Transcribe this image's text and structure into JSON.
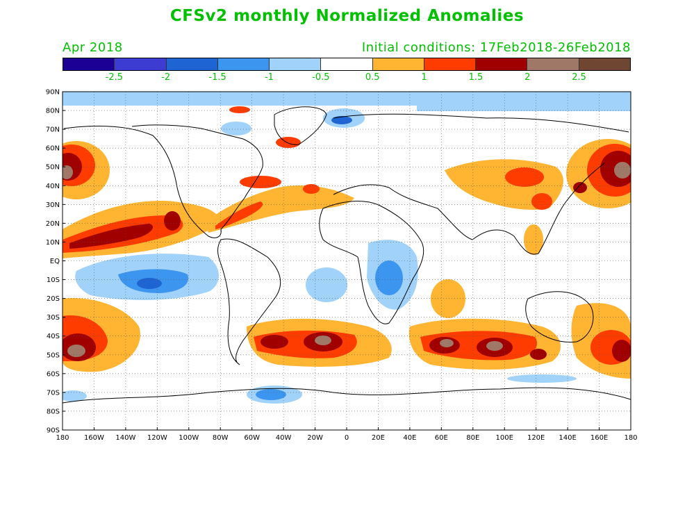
{
  "header": {
    "title": "CFSv2 monthly Normalized Anomalies",
    "left_subtitle": "Apr 2018",
    "right_subtitle": "Initial conditions: 17Feb2018-26Feb2018",
    "text_color": "#00c000"
  },
  "colorbar": {
    "colors": [
      "#1c0096",
      "#3c3cd2",
      "#1e64d2",
      "#3c96f0",
      "#a0d2fa",
      "#ffffff",
      "#ffb432",
      "#ff3c00",
      "#a00000",
      "#a07868",
      "#6e4632"
    ],
    "labels": [
      "-2.5",
      "-2",
      "-1.5",
      "-1",
      "-0.5",
      "0.5",
      "1",
      "1.5",
      "2",
      "2.5"
    ]
  },
  "map": {
    "lat_labels": [
      "90N",
      "80N",
      "70N",
      "60N",
      "50N",
      "40N",
      "30N",
      "20N",
      "10N",
      "EQ",
      "10S",
      "20S",
      "30S",
      "40S",
      "50S",
      "60S",
      "70S",
      "80S",
      "90S"
    ],
    "lon_labels": [
      "180",
      "160W",
      "140W",
      "120W",
      "100W",
      "80W",
      "60W",
      "40W",
      "20W",
      "0",
      "20E",
      "40E",
      "60E",
      "80E",
      "100E",
      "120E",
      "140E",
      "160E",
      "180"
    ],
    "gridline_color": "#555555"
  }
}
